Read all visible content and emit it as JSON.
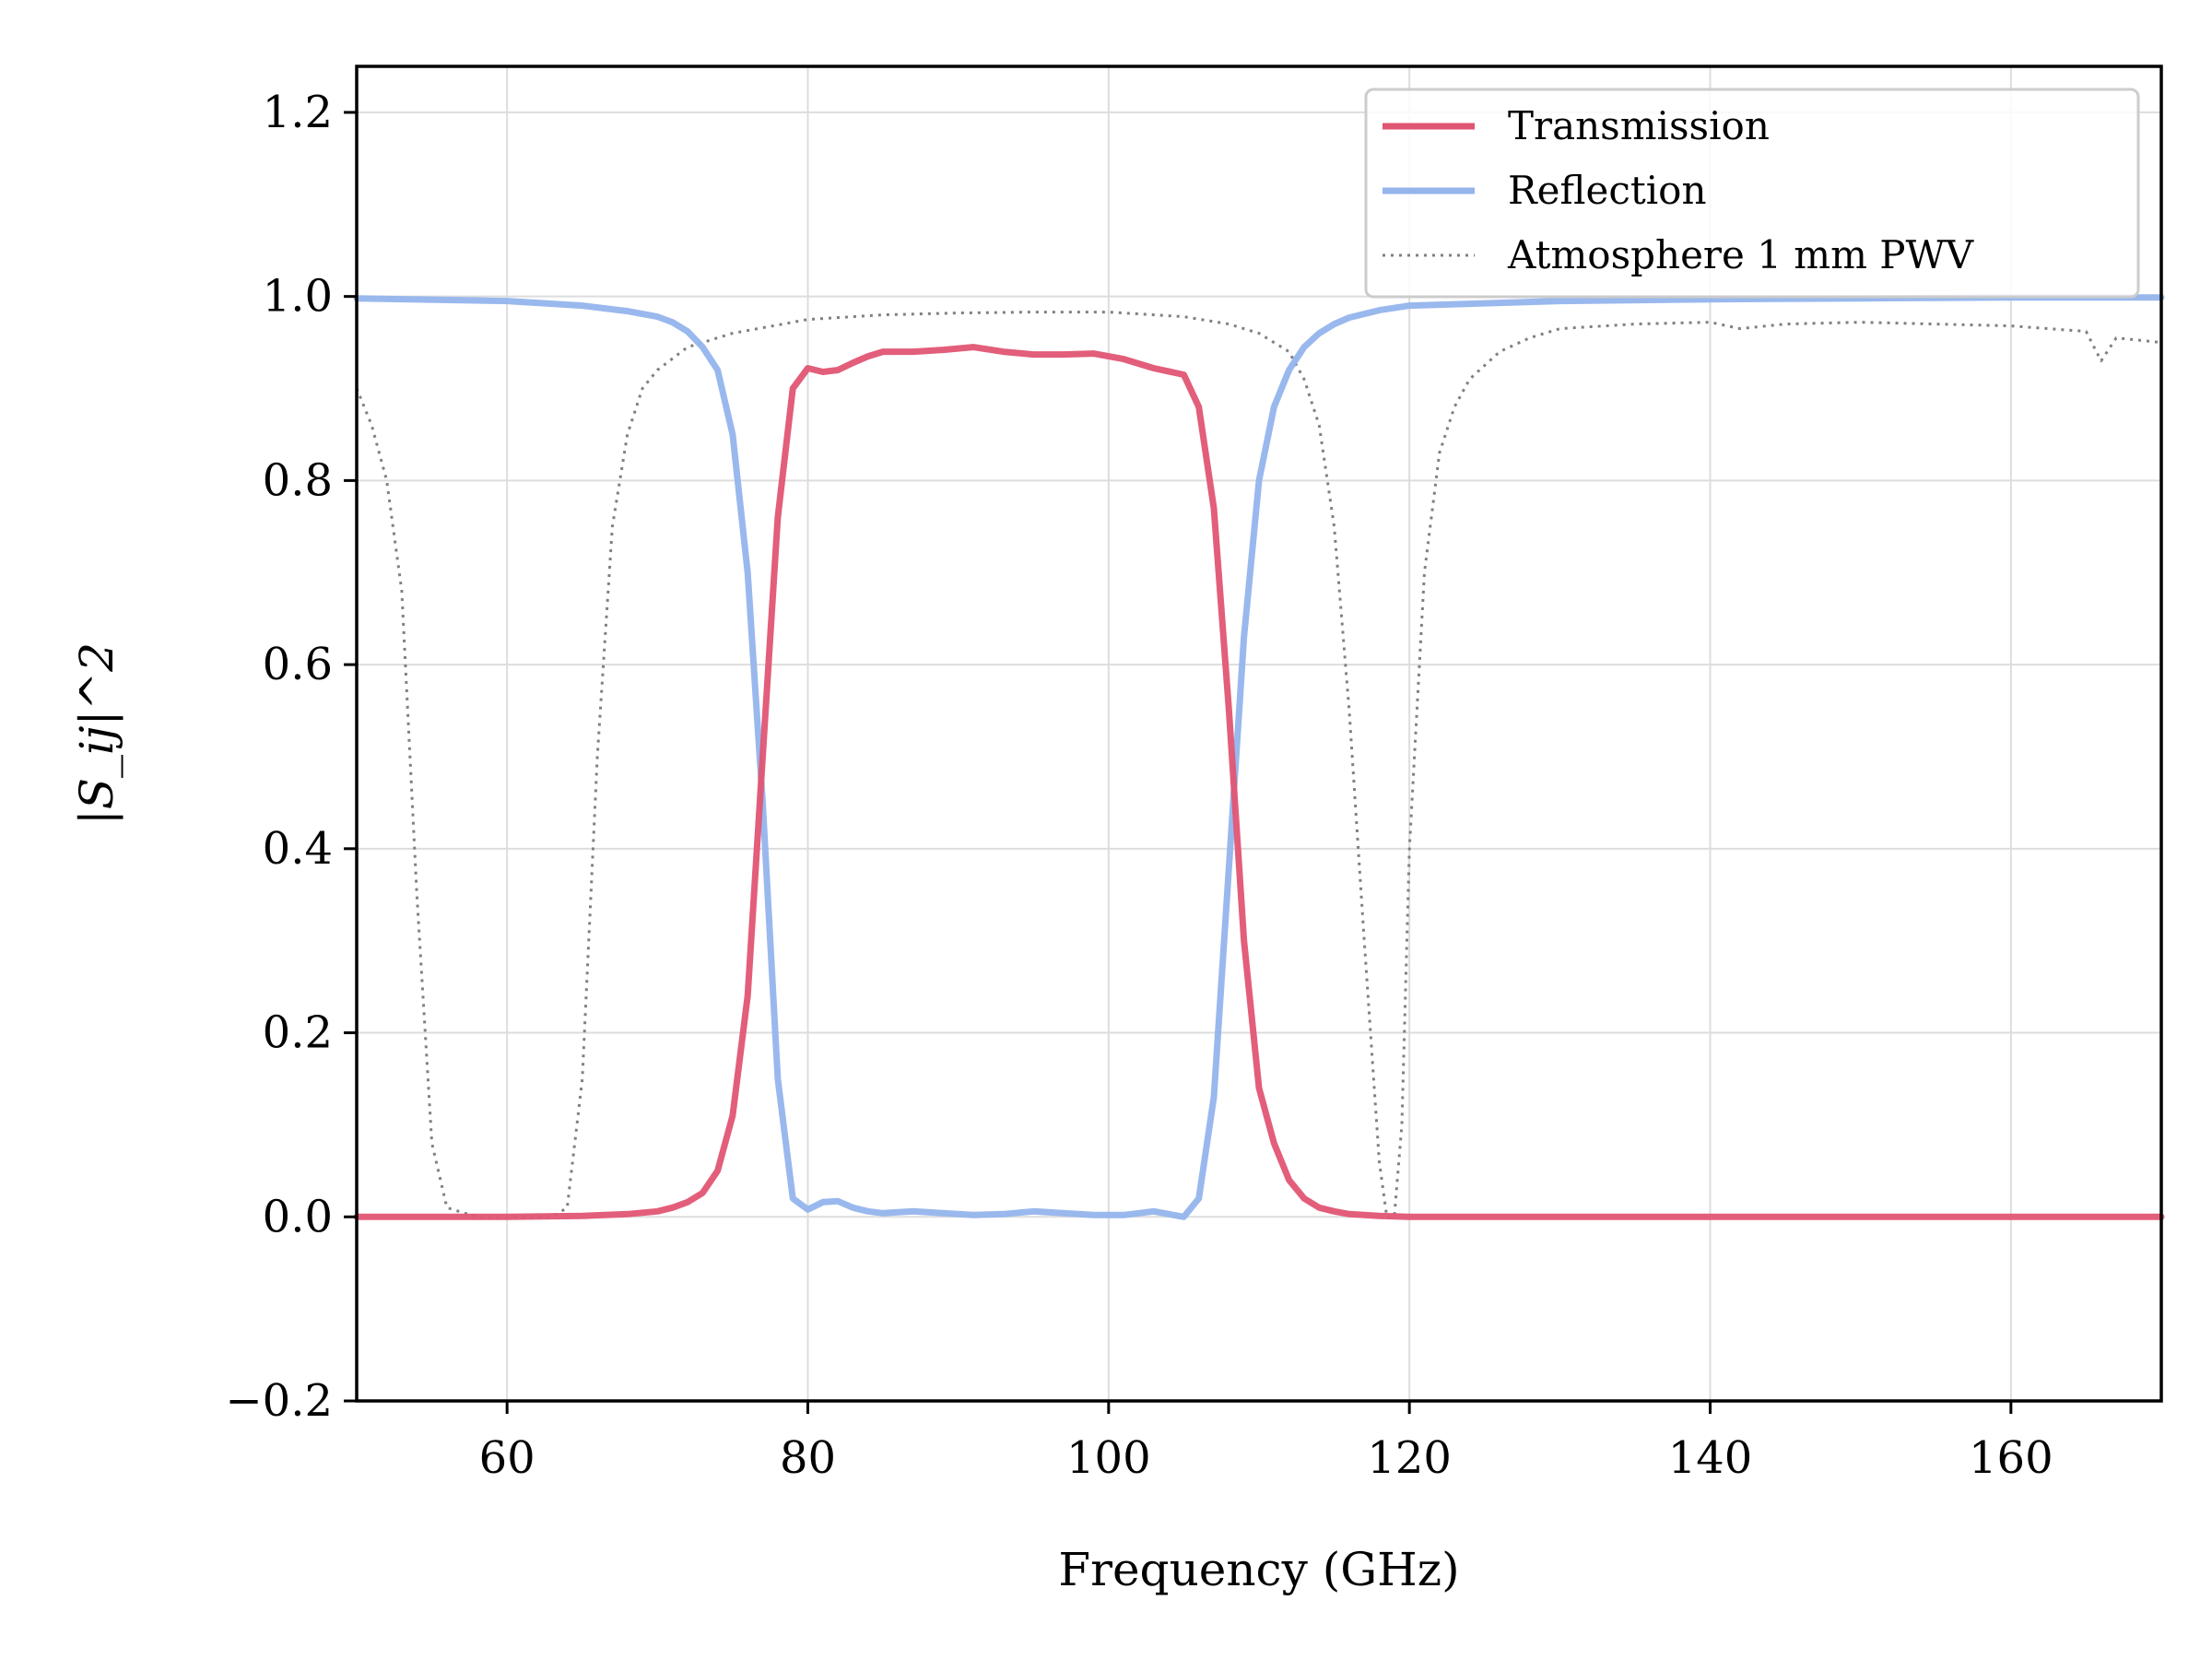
{
  "chart_data": {
    "type": "line",
    "title": "",
    "xlabel": "Frequency (GHz)",
    "ylabel": "|S_ij|^2",
    "xlim": [
      50,
      170
    ],
    "ylim": [
      -0.2,
      1.25
    ],
    "grid": true,
    "legend_position": "top-right",
    "x_ticks": [
      60,
      80,
      100,
      120,
      140,
      160
    ],
    "y_ticks": [
      -0.2,
      0.0,
      0.2,
      0.4,
      0.6,
      0.8,
      1.0,
      1.2
    ],
    "x_tick_labels": [
      "60",
      "80",
      "100",
      "120",
      "140",
      "160"
    ],
    "y_tick_labels": [
      "−0.2",
      "0.0",
      "0.2",
      "0.4",
      "0.6",
      "0.8",
      "1.0",
      "1.2"
    ],
    "series": [
      {
        "name": "Transmission",
        "color": "#e05573",
        "style": "solid",
        "x": [
          50,
          60,
          65,
          68,
          70,
          71,
          72,
          73,
          74,
          75,
          76,
          77,
          78,
          79,
          80,
          81,
          82,
          83,
          84,
          85,
          87,
          89,
          91,
          93,
          95,
          97,
          99,
          101,
          103,
          105,
          106,
          107,
          108,
          109,
          110,
          111,
          112,
          113,
          114,
          115,
          116,
          118,
          120,
          130,
          140,
          150,
          160,
          170
        ],
        "y": [
          0.0,
          0.0,
          0.001,
          0.003,
          0.006,
          0.01,
          0.016,
          0.026,
          0.05,
          0.11,
          0.24,
          0.5,
          0.76,
          0.9,
          0.922,
          0.918,
          0.92,
          0.928,
          0.935,
          0.94,
          0.94,
          0.942,
          0.945,
          0.94,
          0.937,
          0.937,
          0.938,
          0.932,
          0.922,
          0.915,
          0.88,
          0.77,
          0.55,
          0.3,
          0.14,
          0.08,
          0.04,
          0.02,
          0.01,
          0.006,
          0.003,
          0.001,
          0.0,
          0.0,
          0.0,
          0.0,
          0.0,
          0.0
        ]
      },
      {
        "name": "Reflection",
        "color": "#94b4ec",
        "style": "solid",
        "x": [
          50,
          60,
          65,
          68,
          70,
          71,
          72,
          73,
          74,
          75,
          76,
          77,
          78,
          79,
          80,
          81,
          82,
          83,
          84,
          85,
          87,
          89,
          91,
          93,
          95,
          97,
          99,
          101,
          103,
          105,
          106,
          107,
          108,
          109,
          110,
          111,
          112,
          113,
          114,
          115,
          116,
          118,
          120,
          130,
          140,
          150,
          160,
          170
        ],
        "y": [
          0.998,
          0.995,
          0.99,
          0.984,
          0.978,
          0.972,
          0.962,
          0.945,
          0.92,
          0.85,
          0.7,
          0.45,
          0.15,
          0.02,
          0.008,
          0.016,
          0.017,
          0.01,
          0.006,
          0.004,
          0.006,
          0.004,
          0.002,
          0.003,
          0.006,
          0.004,
          0.002,
          0.002,
          0.006,
          0.0,
          0.02,
          0.13,
          0.38,
          0.63,
          0.8,
          0.88,
          0.92,
          0.945,
          0.96,
          0.97,
          0.977,
          0.985,
          0.99,
          0.995,
          0.997,
          0.998,
          0.999,
          0.999
        ]
      },
      {
        "name": "Atmosphere 1 mm PWV",
        "color": "#808080",
        "style": "dotted",
        "x": [
          50,
          51,
          52,
          53,
          54,
          55,
          56,
          58,
          60,
          62,
          63,
          64,
          65,
          66,
          67,
          68,
          69,
          70,
          72,
          75,
          80,
          85,
          90,
          95,
          100,
          105,
          108,
          110,
          112,
          113,
          114,
          115,
          116,
          117,
          118,
          118.5,
          119,
          119.5,
          120,
          121,
          122,
          123,
          124,
          126,
          128,
          130,
          135,
          140,
          142,
          145,
          150,
          155,
          160,
          165,
          166,
          167,
          170
        ],
        "y": [
          0.9,
          0.86,
          0.8,
          0.68,
          0.35,
          0.08,
          0.01,
          0.0,
          0.0,
          0.0,
          0.0,
          0.01,
          0.15,
          0.5,
          0.75,
          0.85,
          0.9,
          0.92,
          0.945,
          0.96,
          0.975,
          0.98,
          0.982,
          0.983,
          0.983,
          0.978,
          0.97,
          0.96,
          0.94,
          0.91,
          0.86,
          0.75,
          0.55,
          0.3,
          0.06,
          0.0,
          0.0,
          0.1,
          0.4,
          0.7,
          0.83,
          0.88,
          0.91,
          0.94,
          0.955,
          0.965,
          0.97,
          0.972,
          0.965,
          0.97,
          0.972,
          0.97,
          0.968,
          0.962,
          0.93,
          0.955,
          0.95
        ]
      }
    ],
    "legend": [
      "Transmission",
      "Reflection",
      "Atmosphere 1 mm PWV"
    ]
  }
}
